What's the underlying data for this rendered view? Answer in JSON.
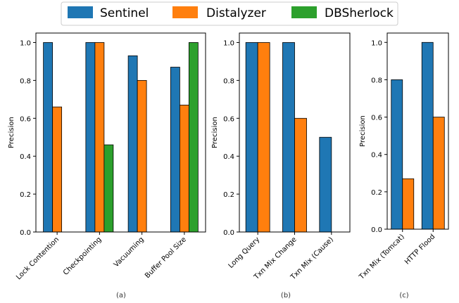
{
  "legend": [
    {
      "name": "Sentinel",
      "color": "#1f77b4"
    },
    {
      "name": "Distalyzer",
      "color": "#ff7f0e"
    },
    {
      "name": "DBSherlock",
      "color": "#2ca02c"
    }
  ],
  "chart_data": [
    {
      "type": "bar",
      "panel_label": "(a)",
      "ylabel": "Precision",
      "ylim": [
        0,
        1.05
      ],
      "yticks": [
        "0.0",
        "0.2",
        "0.4",
        "0.6",
        "0.8",
        "1.0"
      ],
      "categories": [
        "Lock Contention",
        "Checkpointing",
        "Vacuuming",
        "Buffer Pool Size"
      ],
      "series": [
        {
          "name": "Sentinel",
          "values": [
            1.0,
            1.0,
            0.93,
            0.87
          ]
        },
        {
          "name": "Distalyzer",
          "values": [
            0.66,
            1.0,
            0.8,
            0.67
          ]
        },
        {
          "name": "DBSherlock",
          "values": [
            null,
            0.46,
            null,
            1.0
          ]
        }
      ]
    },
    {
      "type": "bar",
      "panel_label": "(b)",
      "ylabel": "Precision",
      "ylim": [
        0,
        1.05
      ],
      "yticks": [
        "0.0",
        "0.2",
        "0.4",
        "0.6",
        "0.8",
        "1.0"
      ],
      "categories": [
        "Long Query",
        "Txn Mix Change",
        "Txn Mix (Cause)"
      ],
      "series": [
        {
          "name": "Sentinel",
          "values": [
            1.0,
            1.0,
            0.5
          ]
        },
        {
          "name": "Distalyzer",
          "values": [
            1.0,
            0.6,
            null
          ]
        }
      ]
    },
    {
      "type": "bar",
      "panel_label": "(c)",
      "ylabel": "Precision",
      "ylim": [
        0,
        1.05
      ],
      "yticks": [
        "0.0",
        "0.2",
        "0.4",
        "0.6",
        "0.8",
        "1.0"
      ],
      "categories": [
        "Txn Mix (Tomcat)",
        "HTTP Flood"
      ],
      "series": [
        {
          "name": "Sentinel",
          "values": [
            0.8,
            1.0
          ]
        },
        {
          "name": "Distalyzer",
          "values": [
            0.27,
            0.6
          ]
        }
      ]
    }
  ]
}
